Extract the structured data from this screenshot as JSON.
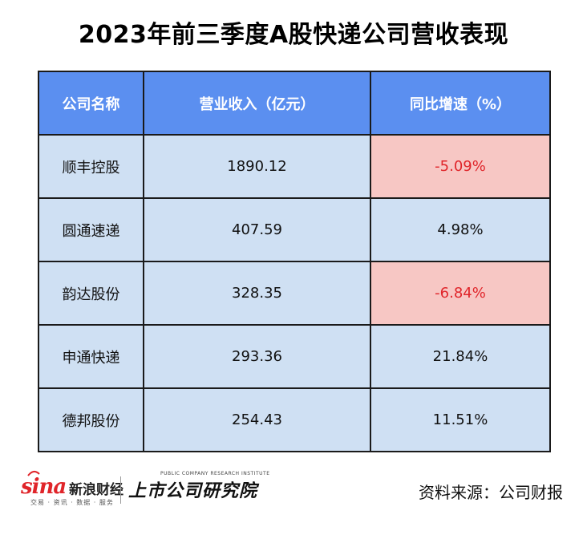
{
  "title": "2023年前三季度A股快递公司营收表现",
  "chart_data": {
    "type": "table",
    "title": "2023年前三季度A股快递公司营收表现",
    "columns": [
      "公司名称",
      "营业收入（亿元）",
      "同比增速（%）"
    ],
    "rows": [
      {
        "company": "顺丰控股",
        "revenue": "1890.12",
        "growth": "-5.09%",
        "negative": true
      },
      {
        "company": "圆通速递",
        "revenue": "407.59",
        "growth": "4.98%",
        "negative": false
      },
      {
        "company": "韵达股份",
        "revenue": "328.35",
        "growth": "-6.84%",
        "negative": true
      },
      {
        "company": "申通快递",
        "revenue": "293.36",
        "growth": "21.84%",
        "negative": false
      },
      {
        "company": "德邦股份",
        "revenue": "254.43",
        "growth": "11.51%",
        "negative": false
      }
    ],
    "colors": {
      "header": "#5b8ff0",
      "cell": "#cfe0f3",
      "negative_cell": "#f7c7c4",
      "negative_text": "#e0252a"
    }
  },
  "footer": {
    "sina_logo": "sina",
    "sina_name": "新浪财经",
    "sina_sub": "交易 · 资讯 · 数据 · 服务",
    "brand_en": "PUBLIC COMPANY RESEARCH INSTITUTE",
    "brand_name": "上市公司研究院",
    "source": "资料来源：公司财报"
  }
}
